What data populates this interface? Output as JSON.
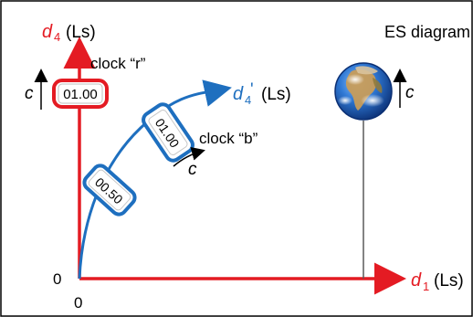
{
  "diagram": {
    "title": "ES diagram",
    "colors": {
      "frame": "#000000",
      "red": "#e41b23",
      "blue": "#1e6fbf",
      "black": "#000000",
      "white": "#ffffff",
      "earth_line": "#5a5a5a"
    },
    "axes": {
      "d4_symbol": "d",
      "d4_subscript": "4",
      "d4_unit": "(Ls)",
      "d1_symbol": "d",
      "d1_subscript": "1",
      "d1_unit": "(Ls)",
      "origin_y": "0",
      "origin_x": "0"
    },
    "clock_r": {
      "label": "clock “r”",
      "time": "01.00",
      "speed_label": "c"
    },
    "clock_b": {
      "label": "clock “b”",
      "axis_symbol": "d",
      "axis_subscript": "4",
      "axis_prime": "'",
      "axis_unit": "(Ls)",
      "speed_label": "c",
      "times": [
        "00.50",
        "01.00"
      ]
    },
    "earth": {
      "icon": "earth-icon",
      "speed_label": "c"
    }
  }
}
